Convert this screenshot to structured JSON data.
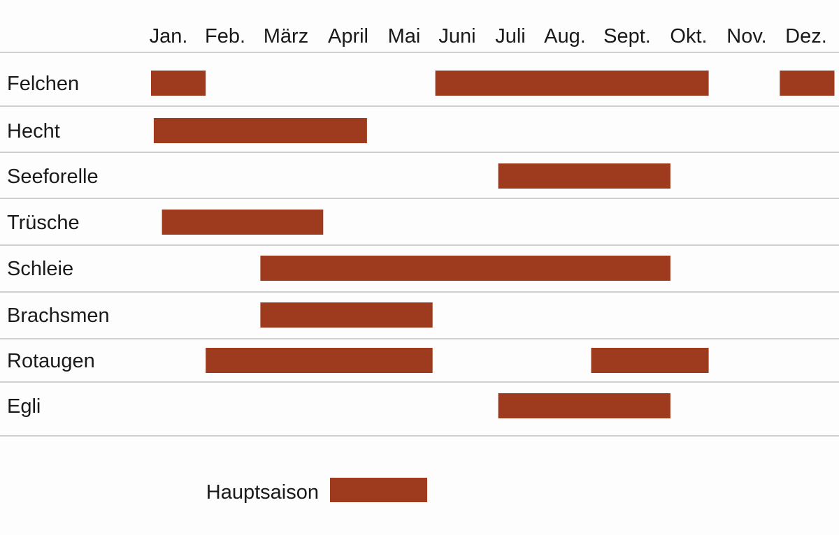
{
  "chart_data": {
    "type": "bar",
    "title": "",
    "xlabel": "",
    "ylabel": "",
    "months": [
      "Jan.",
      "Feb.",
      "März",
      "April",
      "Mai",
      "Juni",
      "Juli",
      "Aug.",
      "Sept.",
      "Okt.",
      "Nov.",
      "Dez."
    ],
    "xlim": [
      0,
      12
    ],
    "bar_color": "#9e3b1e",
    "rows": [
      {
        "label": "Felchen",
        "ranges": [
          [
            0.0,
            1.0
          ],
          [
            5.2,
            10.2
          ],
          [
            11.5,
            12.5
          ]
        ]
      },
      {
        "label": "Hecht",
        "ranges": [
          [
            0.05,
            3.95
          ]
        ]
      },
      {
        "label": "Seeforelle",
        "ranges": [
          [
            6.35,
            9.5
          ]
        ]
      },
      {
        "label": "Trüsche",
        "ranges": [
          [
            0.2,
            3.15
          ]
        ]
      },
      {
        "label": "Schleie",
        "ranges": [
          [
            2.0,
            9.5
          ]
        ]
      },
      {
        "label": "Brachsmen",
        "ranges": [
          [
            2.0,
            5.15
          ]
        ]
      },
      {
        "label": "Rotaugen",
        "ranges": [
          [
            1.0,
            5.15
          ],
          [
            8.05,
            10.2
          ]
        ]
      },
      {
        "label": "Egli",
        "ranges": [
          [
            6.35,
            9.5
          ]
        ]
      }
    ],
    "legend": {
      "label": "Hauptsaison",
      "placement": "bottom-center"
    },
    "grid": "horizontal row separators"
  }
}
